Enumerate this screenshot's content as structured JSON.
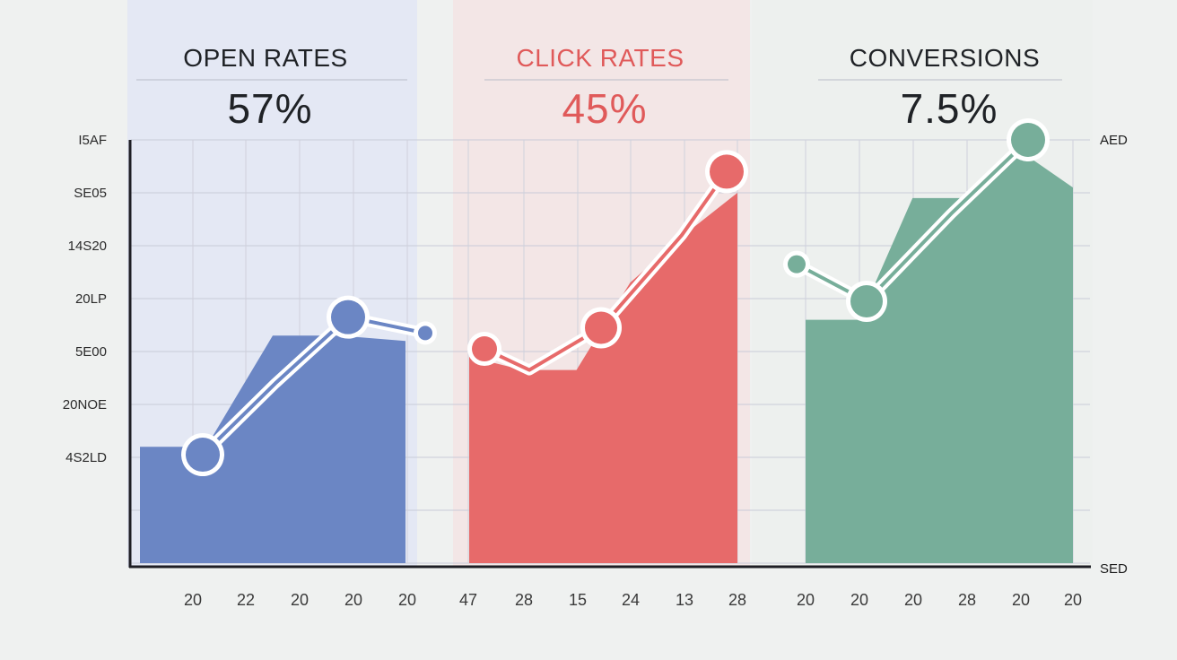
{
  "chart_data": {
    "type": "area",
    "y_tick_labels": [
      "I5AF",
      "SE05",
      "14S20",
      "20LP",
      "5E00",
      "20NOE",
      "4S2LD",
      ""
    ],
    "y_axis_top_label": "AED",
    "x_axis_end_label": "SED",
    "ylim": [
      0,
      8
    ],
    "grid": true,
    "panels": [
      {
        "title": "OPEN RATES",
        "value_label": "57%",
        "color": "#6b86c4",
        "title_color": "#1f2226",
        "bg_color": "#e4e8f4",
        "x_labels": [
          "20",
          "22",
          "20",
          "20",
          "20"
        ],
        "area": [
          2.2,
          2.2,
          4.3,
          4.3,
          4.2
        ],
        "line": [
          2.05,
          3.4,
          4.65,
          4.35
        ],
        "markers": [
          2.05,
          4.65,
          4.35
        ]
      },
      {
        "title": "CLICK RATES",
        "value_label": "45%",
        "color": "#e76a6a",
        "title_color": "#e05a5a",
        "bg_color": "#f3e6e6",
        "x_labels": [
          "47",
          "28",
          "15",
          "24",
          "13",
          "28"
        ],
        "area": [
          3.9,
          3.65,
          3.65,
          5.3,
          6.2,
          7.0
        ],
        "line": [
          4.05,
          3.65,
          4.45,
          6.2,
          7.4
        ],
        "markers": [
          4.05,
          4.45,
          7.4
        ]
      },
      {
        "title": "CONVERSIONS",
        "value_label": "7.5%",
        "color": "#77ae9a",
        "title_color": "#1f2226",
        "bg_color": "#edf0ee",
        "x_labels": [
          "20",
          "20",
          "20",
          "28",
          "20",
          "20"
        ],
        "area": [
          4.6,
          4.6,
          6.9,
          6.9,
          7.8,
          7.1
        ],
        "line": [
          5.65,
          4.95,
          6.6,
          8.0
        ],
        "markers": [
          5.65,
          4.95,
          8.0
        ]
      }
    ]
  }
}
